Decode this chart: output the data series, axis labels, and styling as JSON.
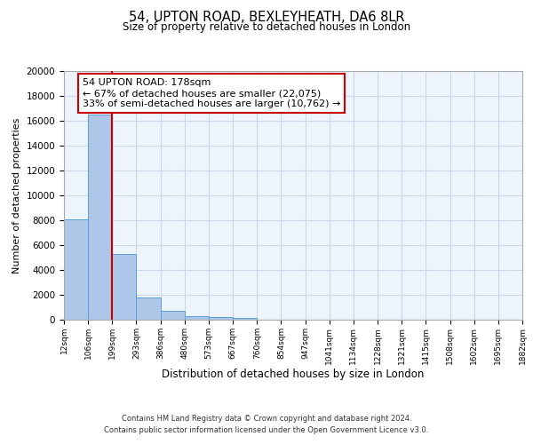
{
  "title": "54, UPTON ROAD, BEXLEYHEATH, DA6 8LR",
  "subtitle": "Size of property relative to detached houses in London",
  "xlabel": "Distribution of detached houses by size in London",
  "ylabel": "Number of detached properties",
  "bar_values": [
    8100,
    16500,
    5300,
    1800,
    700,
    300,
    200,
    150,
    0,
    0,
    0,
    0,
    0,
    0,
    0,
    0,
    0,
    0,
    0
  ],
  "bin_labels": [
    "12sqm",
    "106sqm",
    "199sqm",
    "293sqm",
    "386sqm",
    "480sqm",
    "573sqm",
    "667sqm",
    "760sqm",
    "854sqm",
    "947sqm",
    "1041sqm",
    "1134sqm",
    "1228sqm",
    "1321sqm",
    "1415sqm",
    "1508sqm",
    "1602sqm",
    "1695sqm",
    "1882sqm"
  ],
  "bar_color": "#aec6e8",
  "bar_edgecolor": "#5a9fd4",
  "red_line_bin_index": 2,
  "annotation_title": "54 UPTON ROAD: 178sqm",
  "annotation_line1": "← 67% of detached houses are smaller (22,075)",
  "annotation_line2": "33% of semi-detached houses are larger (10,762) →",
  "annotation_box_color": "#ffffff",
  "annotation_box_edgecolor": "#cc0000",
  "red_line_color": "#cc0000",
  "ylim": [
    0,
    20000
  ],
  "yticks": [
    0,
    2000,
    4000,
    6000,
    8000,
    10000,
    12000,
    14000,
    16000,
    18000,
    20000
  ],
  "grid_color": "#c8d8e8",
  "bg_color": "#eef4fb",
  "footnote1": "Contains HM Land Registry data © Crown copyright and database right 2024.",
  "footnote2": "Contains public sector information licensed under the Open Government Licence v3.0."
}
